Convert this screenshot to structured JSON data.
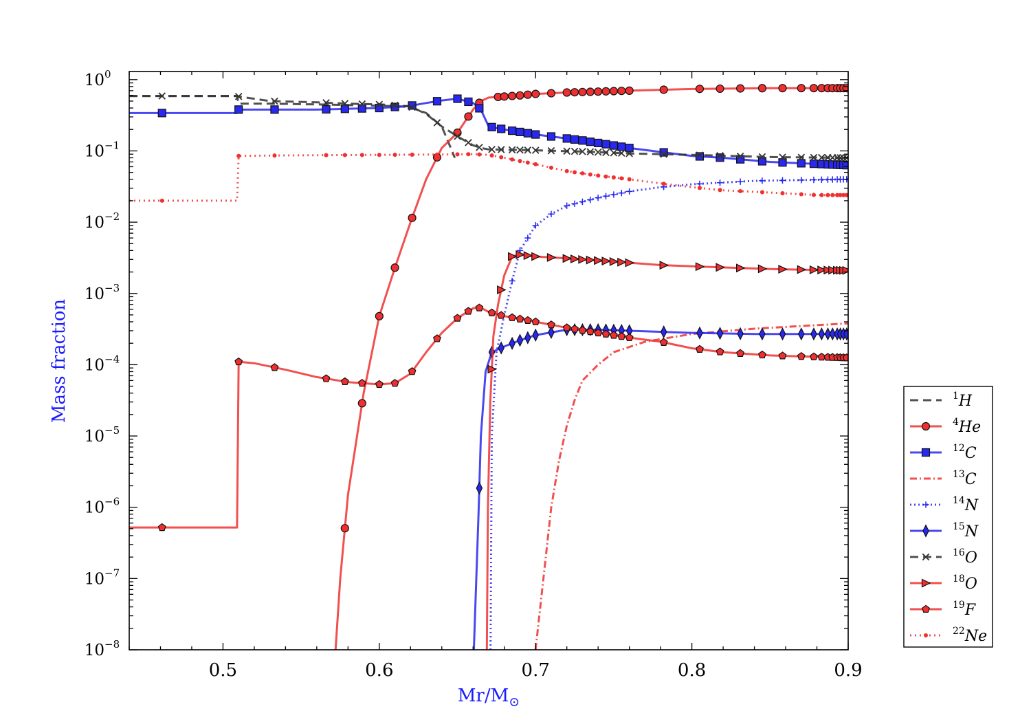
{
  "chart_data": {
    "type": "line",
    "title": "",
    "xlabel": "Mr/M",
    "xlabel_sub": "⊙",
    "ylabel": "Mass fraction",
    "xlim": [
      0.44,
      0.9
    ],
    "ylim": [
      1e-08,
      1.3
    ],
    "yscale": "log",
    "grid": false,
    "legend_position": "outside-right",
    "x_ticks": [
      {
        "value": 0.5,
        "label": "0.5"
      },
      {
        "value": 0.6,
        "label": "0.6"
      },
      {
        "value": 0.7,
        "label": "0.7"
      },
      {
        "value": 0.8,
        "label": "0.8"
      },
      {
        "value": 0.9,
        "label": "0.9"
      }
    ],
    "y_ticks": [
      {
        "value": 1,
        "base": "10",
        "exp": "0"
      },
      {
        "value": 0.1,
        "base": "10",
        "exp": "−1"
      },
      {
        "value": 0.01,
        "base": "10",
        "exp": "−2"
      },
      {
        "value": 0.001,
        "base": "10",
        "exp": "−3"
      },
      {
        "value": 0.0001,
        "base": "10",
        "exp": "−4"
      },
      {
        "value": 1e-05,
        "base": "10",
        "exp": "−5"
      },
      {
        "value": 1e-06,
        "base": "10",
        "exp": "−6"
      },
      {
        "value": 1e-07,
        "base": "10",
        "exp": "−7"
      },
      {
        "value": 1e-08,
        "base": "10",
        "exp": "−8"
      }
    ],
    "series": [
      {
        "name": "H",
        "mass": "1",
        "color": "#333333",
        "dash": "12,7",
        "marker": "none",
        "x": [
          0.44,
          0.509,
          0.51,
          0.53,
          0.56,
          0.58,
          0.6,
          0.615,
          0.62,
          0.63,
          0.64,
          0.645,
          0.6483
        ],
        "y": [
          0.59,
          0.59,
          0.46,
          0.46,
          0.45,
          0.44,
          0.43,
          0.42,
          0.41,
          0.34,
          0.22,
          0.12,
          0.08
        ],
        "marker_x": []
      },
      {
        "name": "He",
        "mass": "4",
        "color": "#f03030",
        "dash": "",
        "marker": "circle",
        "x": [
          0.572,
          0.575,
          0.58,
          0.59,
          0.6,
          0.61,
          0.62,
          0.63,
          0.64,
          0.65,
          0.66,
          0.665,
          0.67,
          0.675,
          0.69,
          0.7,
          0.72,
          0.75,
          0.78,
          0.8,
          0.85,
          0.9
        ],
        "y": [
          1e-08,
          1e-07,
          1.5e-06,
          4e-05,
          0.00048,
          0.0023,
          0.01,
          0.04,
          0.11,
          0.18,
          0.38,
          0.5,
          0.56,
          0.57,
          0.6,
          0.63,
          0.66,
          0.69,
          0.72,
          0.74,
          0.76,
          0.76
        ],
        "marker_x": [
          0.578,
          0.589,
          0.6,
          0.61,
          0.621,
          0.637,
          0.65,
          0.657,
          0.664,
          0.676,
          0.68,
          0.685,
          0.69,
          0.695,
          0.7,
          0.71,
          0.72,
          0.725,
          0.73,
          0.735,
          0.74,
          0.745,
          0.75,
          0.755,
          0.76,
          0.782,
          0.805,
          0.818,
          0.831,
          0.845,
          0.858,
          0.87,
          0.878,
          0.883,
          0.887,
          0.89,
          0.893,
          0.895,
          0.897,
          0.899
        ]
      },
      {
        "name": "C",
        "mass": "12",
        "color": "#2828f0",
        "dash": "",
        "marker": "square",
        "x": [
          0.44,
          0.509,
          0.51,
          0.53,
          0.56,
          0.58,
          0.6,
          0.615,
          0.62,
          0.63,
          0.64,
          0.65,
          0.66,
          0.665,
          0.67,
          0.68,
          0.7,
          0.73,
          0.76,
          0.8,
          0.82,
          0.85,
          0.9
        ],
        "y": [
          0.34,
          0.34,
          0.38,
          0.38,
          0.38,
          0.39,
          0.4,
          0.42,
          0.43,
          0.47,
          0.51,
          0.54,
          0.47,
          0.38,
          0.22,
          0.2,
          0.17,
          0.14,
          0.11,
          0.085,
          0.08,
          0.07,
          0.063
        ],
        "marker_x": [
          0.461,
          0.51,
          0.533,
          0.566,
          0.578,
          0.589,
          0.6,
          0.61,
          0.621,
          0.637,
          0.65,
          0.657,
          0.664,
          0.672,
          0.678,
          0.685,
          0.69,
          0.695,
          0.7,
          0.71,
          0.72,
          0.725,
          0.73,
          0.735,
          0.74,
          0.745,
          0.75,
          0.755,
          0.76,
          0.782,
          0.805,
          0.818,
          0.831,
          0.845,
          0.858,
          0.87,
          0.878,
          0.883,
          0.887,
          0.89,
          0.893,
          0.895,
          0.897,
          0.899
        ]
      },
      {
        "name": "C",
        "mass": "13",
        "color": "#f03030",
        "dash": "10,4,2,4",
        "marker": "none",
        "x": [
          0.7,
          0.705,
          0.71,
          0.715,
          0.72,
          0.725,
          0.73,
          0.74,
          0.75,
          0.77,
          0.8,
          0.84,
          0.9
        ],
        "y": [
          1e-08,
          1e-07,
          1e-06,
          4.5e-06,
          1.4e-05,
          3.2e-05,
          6e-05,
          0.0001,
          0.00015,
          0.00021,
          0.00027,
          0.00032,
          0.00038
        ],
        "marker_x": []
      },
      {
        "name": "N",
        "mass": "14",
        "color": "#2828f0",
        "dash": "2,4",
        "marker": "plus",
        "x": [
          0.6712,
          0.672,
          0.675,
          0.68,
          0.685,
          0.69,
          0.7,
          0.71,
          0.72,
          0.74,
          0.76,
          0.78,
          0.8,
          0.84,
          0.9
        ],
        "y": [
          1e-08,
          1e-05,
          0.00015,
          0.0005,
          0.0015,
          0.004,
          0.009,
          0.013,
          0.017,
          0.022,
          0.027,
          0.031,
          0.034,
          0.038,
          0.04
        ],
        "marker_x": [
          0.685,
          0.69,
          0.695,
          0.7,
          0.71,
          0.72,
          0.725,
          0.73,
          0.735,
          0.74,
          0.745,
          0.75,
          0.755,
          0.76,
          0.782,
          0.805,
          0.818,
          0.831,
          0.845,
          0.858,
          0.87,
          0.878,
          0.883,
          0.887,
          0.89,
          0.893,
          0.895,
          0.897,
          0.899
        ]
      },
      {
        "name": "N",
        "mass": "15",
        "color": "#2828f0",
        "dash": "",
        "marker": "diamond",
        "x": [
          0.6605,
          0.6635,
          0.665,
          0.668,
          0.672,
          0.68,
          0.69,
          0.7,
          0.72,
          0.74,
          0.76,
          0.8,
          0.84,
          0.9
        ],
        "y": [
          1e-08,
          8e-07,
          1e-05,
          8e-05,
          0.00015,
          0.00018,
          0.00022,
          0.00026,
          0.00031,
          0.00031,
          0.0003,
          0.00028,
          0.00027,
          0.00027
        ],
        "marker_x": [
          0.664,
          0.672,
          0.678,
          0.685,
          0.69,
          0.695,
          0.7,
          0.71,
          0.72,
          0.725,
          0.73,
          0.735,
          0.74,
          0.745,
          0.75,
          0.755,
          0.76,
          0.782,
          0.805,
          0.818,
          0.831,
          0.845,
          0.858,
          0.87,
          0.878,
          0.883,
          0.887,
          0.89,
          0.893,
          0.895,
          0.897,
          0.899
        ]
      },
      {
        "name": "O",
        "mass": "16",
        "color": "#333333",
        "dash": "12,7",
        "marker": "cross",
        "x": [
          0.44,
          0.509,
          0.51,
          0.53,
          0.56,
          0.58,
          0.6,
          0.615,
          0.62,
          0.63,
          0.64,
          0.65,
          0.66,
          0.665,
          0.67,
          0.68,
          0.7,
          0.73,
          0.76,
          0.8,
          0.85,
          0.9
        ],
        "y": [
          0.59,
          0.59,
          0.58,
          0.5,
          0.48,
          0.46,
          0.45,
          0.43,
          0.42,
          0.33,
          0.22,
          0.16,
          0.12,
          0.11,
          0.105,
          0.104,
          0.102,
          0.098,
          0.092,
          0.088,
          0.082,
          0.08
        ],
        "marker_x": [
          0.461,
          0.51,
          0.533,
          0.566,
          0.578,
          0.589,
          0.6,
          0.61,
          0.621,
          0.637,
          0.65,
          0.657,
          0.664,
          0.672,
          0.678,
          0.685,
          0.69,
          0.695,
          0.7,
          0.71,
          0.72,
          0.725,
          0.73,
          0.735,
          0.74,
          0.745,
          0.75,
          0.755,
          0.76,
          0.782,
          0.805,
          0.818,
          0.831,
          0.845,
          0.858,
          0.87,
          0.878,
          0.883,
          0.887,
          0.89,
          0.893,
          0.895,
          0.897,
          0.899
        ]
      },
      {
        "name": "O",
        "mass": "18",
        "color": "#f03030",
        "dash": "",
        "marker": "triangle-right",
        "x": [
          0.6688,
          0.6695,
          0.671,
          0.673,
          0.676,
          0.68,
          0.685,
          0.69,
          0.7,
          0.72,
          0.75,
          0.78,
          0.8,
          0.85,
          0.9
        ],
        "y": [
          1e-08,
          1e-06,
          3e-05,
          0.00025,
          0.0007,
          0.0018,
          0.0033,
          0.0035,
          0.0033,
          0.0031,
          0.0028,
          0.0025,
          0.0024,
          0.0022,
          0.0021
        ],
        "marker_x": [
          0.672,
          0.678,
          0.685,
          0.69,
          0.695,
          0.7,
          0.71,
          0.72,
          0.725,
          0.73,
          0.735,
          0.74,
          0.745,
          0.75,
          0.755,
          0.76,
          0.782,
          0.805,
          0.818,
          0.831,
          0.845,
          0.858,
          0.87,
          0.878,
          0.883,
          0.887,
          0.89,
          0.893,
          0.895,
          0.897,
          0.899
        ]
      },
      {
        "name": "F",
        "mass": "19",
        "color": "#f03030",
        "dash": "",
        "marker": "pentagon",
        "x": [
          0.44,
          0.509,
          0.51,
          0.52,
          0.54,
          0.56,
          0.58,
          0.6,
          0.61,
          0.62,
          0.63,
          0.64,
          0.65,
          0.66,
          0.665,
          0.67,
          0.68,
          0.7,
          0.72,
          0.74,
          0.76,
          0.78,
          0.8,
          0.82,
          0.85,
          0.9
        ],
        "y": [
          5.2e-07,
          5.2e-07,
          0.00011,
          0.000105,
          8.5e-05,
          6.7e-05,
          5.7e-05,
          5.3e-05,
          5.5e-05,
          7.5e-05,
          0.00015,
          0.00028,
          0.00045,
          0.00062,
          0.00063,
          0.00055,
          0.00048,
          0.0004,
          0.00033,
          0.00028,
          0.00024,
          0.00021,
          0.00017,
          0.00015,
          0.000135,
          0.000125
        ],
        "marker_x": [
          0.461,
          0.51,
          0.533,
          0.566,
          0.578,
          0.589,
          0.6,
          0.61,
          0.621,
          0.637,
          0.65,
          0.657,
          0.664,
          0.672,
          0.678,
          0.685,
          0.69,
          0.695,
          0.7,
          0.71,
          0.72,
          0.725,
          0.73,
          0.735,
          0.74,
          0.745,
          0.75,
          0.755,
          0.76,
          0.782,
          0.805,
          0.818,
          0.831,
          0.845,
          0.858,
          0.87,
          0.878,
          0.883,
          0.887,
          0.89,
          0.893,
          0.895,
          0.897,
          0.899
        ]
      },
      {
        "name": "Ne",
        "mass": "22",
        "color": "#f03030",
        "dash": "2,5",
        "marker": "dot",
        "x": [
          0.44,
          0.509,
          0.51,
          0.53,
          0.56,
          0.6,
          0.64,
          0.66,
          0.67,
          0.68,
          0.7,
          0.72,
          0.74,
          0.76,
          0.78,
          0.8,
          0.82,
          0.85,
          0.88,
          0.9
        ],
        "y": [
          0.02,
          0.02,
          0.085,
          0.086,
          0.087,
          0.088,
          0.089,
          0.09,
          0.088,
          0.08,
          0.065,
          0.052,
          0.045,
          0.04,
          0.035,
          0.031,
          0.028,
          0.026,
          0.024,
          0.024
        ],
        "marker_x": [
          0.461,
          0.51,
          0.533,
          0.566,
          0.578,
          0.589,
          0.6,
          0.61,
          0.621,
          0.637,
          0.65,
          0.657,
          0.664,
          0.672,
          0.678,
          0.685,
          0.69,
          0.695,
          0.7,
          0.71,
          0.72,
          0.725,
          0.73,
          0.735,
          0.74,
          0.745,
          0.75,
          0.755,
          0.76,
          0.782,
          0.805,
          0.818,
          0.831,
          0.845,
          0.858,
          0.87,
          0.878,
          0.883,
          0.887,
          0.89,
          0.893,
          0.895,
          0.897,
          0.899
        ]
      }
    ]
  }
}
